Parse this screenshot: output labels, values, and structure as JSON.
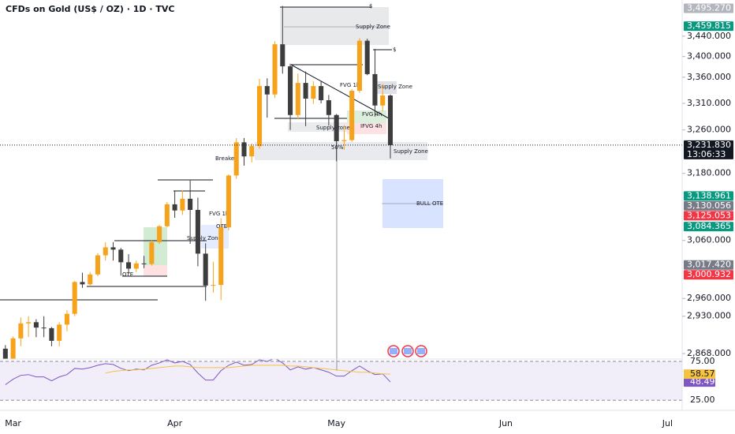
{
  "chart_data": [
    {
      "type": "candlestick",
      "title": "CFDs on Gold (US$ / OZ) · 1D · TVC",
      "log_scale": true,
      "grid": false,
      "up_color": "#f7a21b",
      "down_color": "#3d3d3d",
      "x": [
        -1,
        0,
        1,
        2,
        3,
        4,
        5,
        6,
        7,
        8,
        9,
        10,
        11,
        12,
        13,
        14,
        15,
        16,
        17,
        18,
        19,
        20,
        21,
        22,
        23,
        24,
        25,
        26,
        27,
        28,
        29,
        30,
        31,
        32,
        33,
        34,
        35,
        36,
        37,
        38,
        39,
        40,
        41,
        42,
        43,
        44,
        45,
        46,
        47,
        48,
        49
      ],
      "open": [
        2876,
        2858,
        2893,
        2918,
        2920,
        2911,
        2910,
        2889,
        2916,
        2934,
        2988,
        2984,
        3001,
        3034,
        3048,
        3044,
        3022,
        3011,
        3020,
        3019,
        3057,
        3085,
        3124,
        3113,
        3134,
        3114,
        3037,
        2982,
        2983,
        3083,
        3176,
        3237,
        3211,
        3230,
        3343,
        3327,
        3424,
        3381,
        3288,
        3349,
        3319,
        3343,
        3316,
        3288,
        3239,
        3241,
        3334,
        3431,
        3366,
        3306,
        3325
      ],
      "high": [
        2882,
        2896,
        2928,
        2930,
        2925,
        2930,
        2912,
        2920,
        2940,
        2990,
        3004,
        3005,
        3038,
        3057,
        3057,
        3047,
        3036,
        3025,
        3033,
        3060,
        3087,
        3128,
        3149,
        3149,
        3167,
        3136,
        3055,
        3023,
        3099,
        3178,
        3245,
        3245,
        3235,
        3357,
        3358,
        3430,
        3500,
        3386,
        3367,
        3371,
        3352,
        3353,
        3326,
        3290,
        3269,
        3337,
        3436,
        3435,
        3415,
        3347,
        3327
      ],
      "low": [
        2832,
        2850,
        2880,
        2895,
        2895,
        2895,
        2880,
        2880,
        2905,
        2930,
        2978,
        2982,
        2998,
        3025,
        3025,
        2999,
        3002,
        3005,
        3012,
        3016,
        3054,
        3083,
        3100,
        3105,
        3054,
        3015,
        2956,
        2970,
        2957,
        3078,
        3170,
        3194,
        3200,
        3225,
        3283,
        3320,
        3367,
        3260,
        3280,
        3267,
        3309,
        3310,
        3268,
        3202,
        3223,
        3238,
        3330,
        3364,
        3285,
        3295,
        3207
      ],
      "close": [
        2858,
        2893,
        2918,
        2920,
        2911,
        2910,
        2889,
        2916,
        2934,
        2988,
        2984,
        3001,
        3034,
        3048,
        3044,
        3022,
        3011,
        3020,
        3019,
        3057,
        3085,
        3124,
        3113,
        3134,
        3114,
        3037,
        2982,
        2983,
        3083,
        3176,
        3237,
        3211,
        3230,
        3343,
        3327,
        3424,
        3381,
        3288,
        3349,
        3319,
        3343,
        3316,
        3288,
        3239,
        3241,
        3334,
        3431,
        3366,
        3306,
        3325,
        3231.83
      ],
      "xlim": [
        -1.7,
        86.9
      ],
      "xticks": [
        {
          "value": 0,
          "label": "Mar"
        },
        {
          "value": 21,
          "label": "Apr"
        },
        {
          "value": 42,
          "label": "May"
        },
        {
          "value": 64,
          "label": "Jun"
        },
        {
          "value": 85,
          "label": "Jul"
        }
      ],
      "ylim": [
        2859,
        3512
      ],
      "yticks": [
        {
          "value": 3440,
          "label": "3,440.000"
        },
        {
          "value": 3400,
          "label": "3,400.000"
        },
        {
          "value": 3360,
          "label": "3,360.000"
        },
        {
          "value": 3310,
          "label": "3,310.000"
        },
        {
          "value": 3260,
          "label": "3,260.000"
        },
        {
          "value": 3180,
          "label": "3,180.000"
        },
        {
          "value": 3060,
          "label": "3,060.000"
        },
        {
          "value": 2960,
          "label": "2,960.000"
        },
        {
          "value": 2930,
          "label": "2,930.000"
        },
        {
          "value": 2868,
          "label": "2,868.000"
        }
      ],
      "price_labels": [
        {
          "value": 3495.27,
          "label": "3,495.270",
          "color": "#b2b5be"
        },
        {
          "value": 3459.815,
          "label": "3,459.815",
          "color": "#089981"
        },
        {
          "value": 3138.961,
          "label": "3,138.961",
          "color": "#089981"
        },
        {
          "value": 3130.056,
          "label": "3,130.056",
          "color": "#787b86"
        },
        {
          "value": 3125.053,
          "label": "3,125.053",
          "color": "#f23645"
        },
        {
          "value": 3084.365,
          "label": "3,084.365",
          "color": "#089981"
        },
        {
          "value": 3017.42,
          "label": "3,017.420",
          "color": "#787b86"
        },
        {
          "value": 3000.932,
          "label": "3,000.932",
          "color": "#f23645"
        }
      ],
      "last_price": {
        "value": 3231.83,
        "label": "3,231.830",
        "countdown": "13:06:33",
        "color": "#131722"
      },
      "annotations": [
        "$",
        "Supply Zone",
        "$",
        "Supply Zone",
        "FVG 1h",
        "FVG 4h",
        "Supply zone",
        "IFVG 4h",
        "50%",
        "Supply Zone",
        "Breaker",
        "BULL OTE",
        "FVG 1h",
        "Supply Zone",
        "OTE",
        "OTE"
      ]
    },
    {
      "type": "line",
      "ylim": [
        12,
        78
      ],
      "yticks": [
        {
          "value": 75,
          "label": "75.00"
        },
        {
          "value": 25,
          "label": "25.00"
        }
      ],
      "band_color": "#7e57c2",
      "series": [
        {
          "color": "#7e57c2",
          "last_label": "48.49",
          "values": [
            45,
            52,
            57,
            58,
            55,
            55,
            50,
            55,
            58,
            66,
            65,
            67,
            70,
            72,
            71,
            66,
            63,
            65,
            64,
            70,
            73,
            77,
            73,
            75,
            71,
            60,
            51,
            51,
            63,
            70,
            74,
            70,
            71,
            77,
            75,
            79,
            73,
            64,
            68,
            65,
            67,
            64,
            61,
            56,
            56,
            63,
            69,
            63,
            58,
            59,
            48.49
          ]
        },
        {
          "color": "#f5c242",
          "last_label": "58.57",
          "values": [
            null,
            null,
            null,
            null,
            null,
            null,
            null,
            null,
            null,
            null,
            null,
            null,
            null,
            60,
            62,
            63,
            64,
            64,
            65,
            66,
            67,
            68,
            69,
            69,
            68,
            67,
            67,
            67,
            67,
            67,
            68,
            69,
            70,
            70,
            70,
            70,
            70,
            69,
            69,
            68,
            67,
            66,
            65,
            64,
            63,
            62,
            61,
            61,
            60,
            59,
            58.57
          ]
        }
      ]
    }
  ]
}
